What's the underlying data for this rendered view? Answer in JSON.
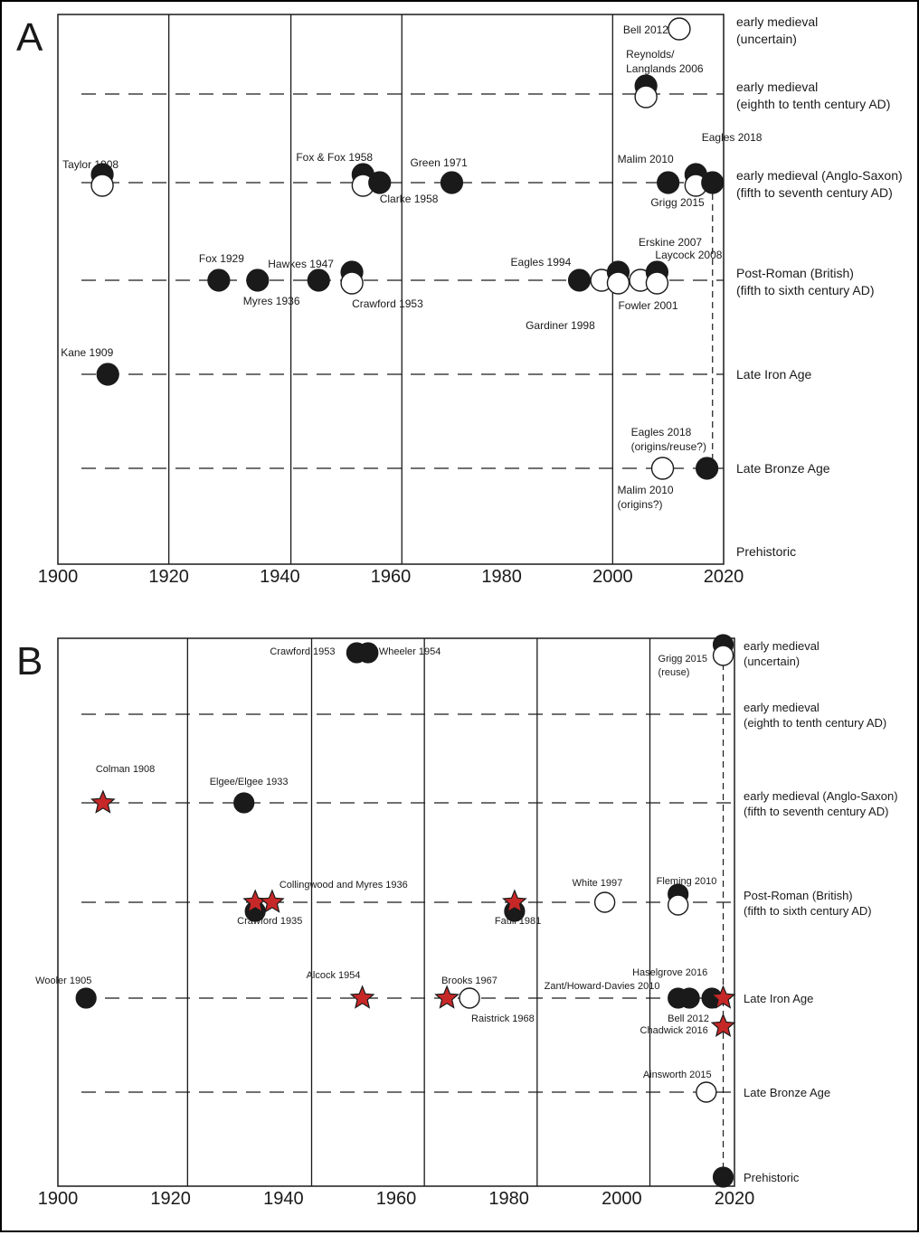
{
  "chart_data": [
    {
      "panel": "A",
      "type": "scatter",
      "xlim": [
        1900,
        2020
      ],
      "x_ticks": [
        1900,
        1920,
        1940,
        1960,
        1980,
        2000,
        2020
      ],
      "vgrid": [
        1920,
        1942,
        1962,
        2000
      ],
      "categories": [
        [
          "early medieval",
          "(uncertain)"
        ],
        [
          "early medieval",
          "(eighth to tenth century AD)"
        ],
        [
          "early medieval (Anglo-Saxon)",
          "(fifth to seventh century AD)"
        ],
        [
          "Post-Roman (British)",
          "(fifth to sixth century AD)"
        ],
        [
          "Late Iron Age"
        ],
        [
          "Late Bronze Age"
        ],
        [
          "Prehistoric"
        ]
      ],
      "points": [
        {
          "label": "Bell 2012",
          "x": 2012,
          "cat": 0,
          "marker": "open"
        },
        {
          "label": "Reynolds/",
          "label2": "Langlands 2006",
          "x": 2006,
          "cat": 1,
          "marker": "pair"
        },
        {
          "label": "Taylor 1908",
          "x": 1908,
          "cat": 2,
          "marker": "pair"
        },
        {
          "label": "Fox & Fox 1958",
          "x": 1955,
          "cat": 2,
          "marker": "pair"
        },
        {
          "label": "Clarke 1958",
          "x": 1958,
          "cat": 2,
          "marker": "filled"
        },
        {
          "label": "Green 1971",
          "x": 1971,
          "cat": 2,
          "marker": "filled"
        },
        {
          "label": "Malim 2010",
          "x": 2010,
          "cat": 2,
          "marker": "filled"
        },
        {
          "label": "Grigg 2015",
          "x": 2015,
          "cat": 2,
          "marker": "pair"
        },
        {
          "label": "Eagles 2018",
          "x": 2018,
          "cat": 2,
          "marker": "filled"
        },
        {
          "label": "Fox 1929",
          "x": 1929,
          "cat": 3,
          "marker": "filled"
        },
        {
          "label": "Myres 1936",
          "x": 1936,
          "cat": 3,
          "marker": "filled"
        },
        {
          "label": "Hawkes 1947",
          "x": 1947,
          "cat": 3,
          "marker": "filled"
        },
        {
          "label": "Crawford 1953",
          "x": 1953,
          "cat": 3,
          "marker": "pair"
        },
        {
          "label": "Eagles 1994",
          "x": 1994,
          "cat": 3,
          "marker": "filled"
        },
        {
          "label": "Gardiner 1998",
          "x": 1998,
          "cat": 3,
          "marker": "open"
        },
        {
          "label": "Fowler 2001",
          "x": 2001,
          "cat": 3,
          "marker": "pair"
        },
        {
          "label": "Erskine 2007",
          "x": 2005,
          "cat": 3,
          "marker": "open"
        },
        {
          "label": "Laycock 2008",
          "x": 2008,
          "cat": 3,
          "marker": "pair"
        },
        {
          "label": "Kane 1909",
          "x": 1909,
          "cat": 4,
          "marker": "filled"
        },
        {
          "label": "Malim 2010",
          "label2": "(origins?)",
          "x": 2009,
          "cat": 5,
          "marker": "open"
        },
        {
          "label": "Eagles 2018",
          "label2": "(origins/reuse?)",
          "x": 2017,
          "cat": 5,
          "marker": "filled"
        }
      ]
    },
    {
      "panel": "B",
      "type": "scatter",
      "xlim": [
        1900,
        2020
      ],
      "x_ticks": [
        1900,
        1920,
        1940,
        1960,
        1980,
        2000,
        2020
      ],
      "vgrid": [
        1923,
        1945,
        1965,
        1985,
        2005
      ],
      "categories": [
        [
          "early medieval",
          "(uncertain)"
        ],
        [
          "early medieval",
          "(eighth to tenth century AD)"
        ],
        [
          "early medieval (Anglo-Saxon)",
          "(fifth to seventh century AD)"
        ],
        [
          "Post-Roman (British)",
          "(fifth to sixth century AD)"
        ],
        [
          "Late Iron Age"
        ],
        [
          "Late Bronze Age"
        ],
        [
          "Prehistoric"
        ]
      ],
      "points": [
        {
          "label": "Crawford 1953",
          "x": 1953,
          "cat": 0,
          "marker": "filled"
        },
        {
          "label": "Wheeler 1954",
          "x": 1955,
          "cat": 0,
          "marker": "filled"
        },
        {
          "label": "Grigg 2015",
          "label2": "(reuse)",
          "x": 2018,
          "cat": 0,
          "marker": "pair"
        },
        {
          "label": "Colman 1908",
          "x": 1908,
          "cat": 2,
          "marker": "star"
        },
        {
          "label": "Elgee/Elgee 1933",
          "x": 1933,
          "cat": 2,
          "marker": "filled"
        },
        {
          "label": "Crawford 1935",
          "x": 1935,
          "cat": 3,
          "marker": "star-over-filled"
        },
        {
          "label": "Collingwood and Myres 1936",
          "x": 1938,
          "cat": 3,
          "marker": "star"
        },
        {
          "label": "Faull 1981",
          "x": 1981,
          "cat": 3,
          "marker": "star-over-filled"
        },
        {
          "label": "White 1997",
          "x": 1997,
          "cat": 3,
          "marker": "open"
        },
        {
          "label": "Fleming 2010",
          "x": 2010,
          "cat": 3,
          "marker": "pair"
        },
        {
          "label": "Wooler 1905",
          "x": 1905,
          "cat": 4,
          "marker": "filled"
        },
        {
          "label": "Alcock 1954",
          "x": 1954,
          "cat": 4,
          "marker": "star"
        },
        {
          "label": "Brooks 1967",
          "x": 1969,
          "cat": 4,
          "marker": "star"
        },
        {
          "label": "Raistrick 1968",
          "x": 1973,
          "cat": 4,
          "marker": "open"
        },
        {
          "label": "Zant/Howard-Davies 2010",
          "x": 2010,
          "cat": 4,
          "marker": "filled"
        },
        {
          "label": "Bell 2012",
          "x": 2012,
          "cat": 4,
          "marker": "filled"
        },
        {
          "label": "Haselgrove 2016",
          "x": 2016,
          "cat": 4,
          "marker": "filled"
        },
        {
          "label": "Haselgrove 2016 (star)",
          "label_hidden": true,
          "x": 2018,
          "cat": 4,
          "marker": "star"
        },
        {
          "label": "Chadwick 2016",
          "x": 2018,
          "cat": 4.3,
          "marker": "star"
        },
        {
          "label": "Ainsworth 2015",
          "x": 2015,
          "cat": 5,
          "marker": "open"
        },
        {
          "label": "Prehistoric",
          "label_hidden": true,
          "x": 2018,
          "cat": 6,
          "marker": "filled"
        }
      ]
    }
  ],
  "colors": {
    "star_fill": "#c62828",
    "ink": "#1a1a1a",
    "paper": "#ffffff"
  }
}
